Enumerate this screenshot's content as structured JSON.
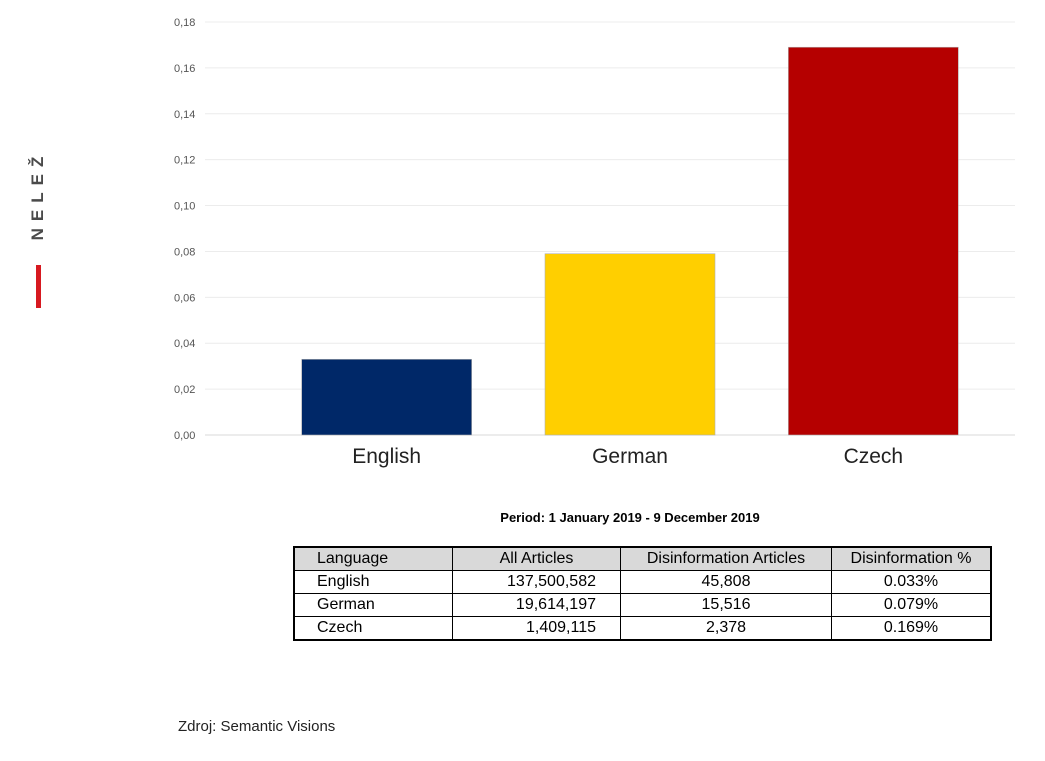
{
  "brand": {
    "name": "NELEŽ",
    "accent_color": "#d71920"
  },
  "chart_data": {
    "type": "bar",
    "categories": [
      "English",
      "German",
      "Czech"
    ],
    "values": [
      0.033,
      0.079,
      0.169
    ],
    "colors": [
      "#002868",
      "#ffcf00",
      "#b50000"
    ],
    "ylim": [
      0,
      0.18
    ],
    "yticks": [
      "0,00",
      "0,02",
      "0,04",
      "0,06",
      "0,08",
      "0,10",
      "0,12",
      "0,14",
      "0,16",
      "0,18"
    ],
    "grid": true
  },
  "period": "Period: 1 January 2019 - 9 December 2019",
  "table": {
    "headers": [
      "Language",
      "All Articles",
      "Disinformation Articles",
      "Disinformation %"
    ],
    "rows": [
      [
        "English",
        "137,500,582",
        "45,808",
        "0.033%"
      ],
      [
        "German",
        "19,614,197",
        "15,516",
        "0.079%"
      ],
      [
        "Czech",
        "1,409,115",
        "2,378",
        "0.169%"
      ]
    ]
  },
  "source": "Zdroj: Semantic Visions"
}
